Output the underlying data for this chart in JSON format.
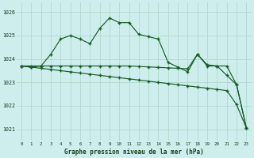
{
  "title": "Graphe pression niveau de la mer (hPa)",
  "bg_color": "#cdeeed",
  "grid_color": "#b0d8cc",
  "line_color": "#1a5c28",
  "xlim": [
    -0.5,
    23.5
  ],
  "ylim": [
    1020.5,
    1026.4
  ],
  "yticks": [
    1021,
    1022,
    1023,
    1024,
    1025,
    1026
  ],
  "x_labels": [
    "0",
    "1",
    "2",
    "3",
    "4",
    "5",
    "6",
    "7",
    "8",
    "9",
    "10",
    "11",
    "12",
    "13",
    "14",
    "15",
    "16",
    "17",
    "18",
    "19",
    "20",
    "21",
    "22",
    "23"
  ],
  "series1": [
    1023.7,
    1023.65,
    1023.7,
    1024.2,
    1024.85,
    1025.0,
    1024.85,
    1024.65,
    1025.3,
    1025.75,
    1025.55,
    1025.55,
    1025.05,
    1024.95,
    1024.85,
    1023.85,
    1023.65,
    1023.45,
    1024.2,
    1023.75,
    1023.7,
    1023.3,
    1022.9,
    1021.05
  ],
  "series2": [
    1023.7,
    1023.7,
    1023.7,
    1023.7,
    1023.7,
    1023.7,
    1023.7,
    1023.7,
    1023.7,
    1023.7,
    1023.7,
    1023.7,
    1023.68,
    1023.66,
    1023.64,
    1023.62,
    1023.6,
    1023.58,
    1024.2,
    1023.7,
    1023.7,
    1023.7,
    1022.9,
    1021.05
  ],
  "series3": [
    1023.7,
    1023.65,
    1023.6,
    1023.55,
    1023.5,
    1023.45,
    1023.4,
    1023.35,
    1023.3,
    1023.25,
    1023.2,
    1023.15,
    1023.1,
    1023.05,
    1023.0,
    1022.95,
    1022.9,
    1022.85,
    1022.8,
    1022.75,
    1022.7,
    1022.65,
    1022.05,
    1021.05
  ]
}
